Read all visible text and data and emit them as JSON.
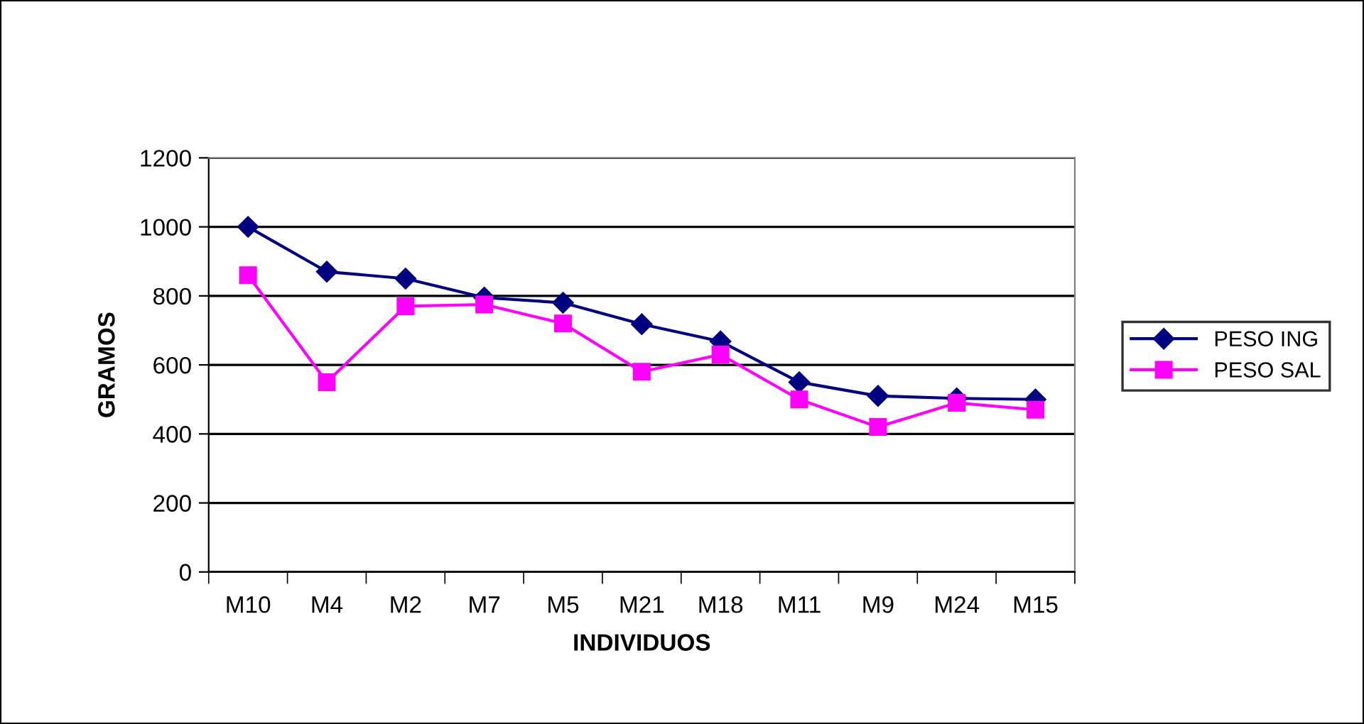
{
  "chart_data": {
    "type": "line",
    "xlabel": "INDIVIDUOS",
    "ylabel": "GRAMOS",
    "categories": [
      "M10",
      "M4",
      "M2",
      "M7",
      "M5",
      "M21",
      "M18",
      "M11",
      "M9",
      "M24",
      "M15"
    ],
    "series": [
      {
        "name": "PESO ING",
        "color": "#000080",
        "marker": "diamond",
        "values": [
          1000,
          870,
          850,
          795,
          780,
          718,
          668,
          550,
          510,
          503,
          500
        ]
      },
      {
        "name": "PESO SAL",
        "color": "#ff00ff",
        "marker": "square",
        "values": [
          860,
          550,
          770,
          775,
          720,
          580,
          630,
          500,
          420,
          490,
          470
        ]
      }
    ],
    "ylim": [
      0,
      1200
    ],
    "yticks": [
      0,
      200,
      400,
      600,
      800,
      1000,
      1200
    ],
    "grid": "y",
    "legend": "right",
    "line_style": "solid"
  }
}
